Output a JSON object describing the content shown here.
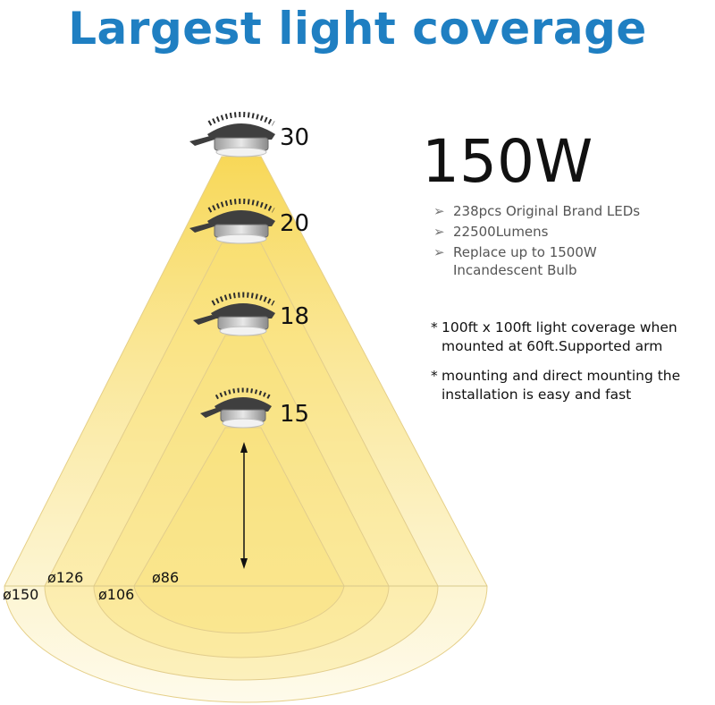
{
  "title": "Largest light coverage",
  "wattage": "150W",
  "specs": [
    {
      "icon": "arrow-bullet-icon",
      "text": "238pcs Original Brand LEDs"
    },
    {
      "icon": "arrow-bullet-icon",
      "text": "22500Lumens"
    },
    {
      "icon": "arrow-bullet-icon",
      "text": "Replace up to 1500W Incandescent Bulb"
    }
  ],
  "notes": [
    {
      "line1": "100ft x 100ft light coverage when",
      "line2": "mounted at 60ft.Supported arm"
    },
    {
      "line1": "mounting and direct mounting the",
      "line2": "installation is easy and fast"
    }
  ],
  "mount_heights": [
    "30",
    "20",
    "18",
    "15"
  ],
  "coverage_diameters": [
    "ø150",
    "ø126",
    "ø106",
    "ø86"
  ],
  "colors": {
    "title": "#1f7fc2",
    "beam": "#f6d64a",
    "fixture": "#4a4a4a"
  }
}
